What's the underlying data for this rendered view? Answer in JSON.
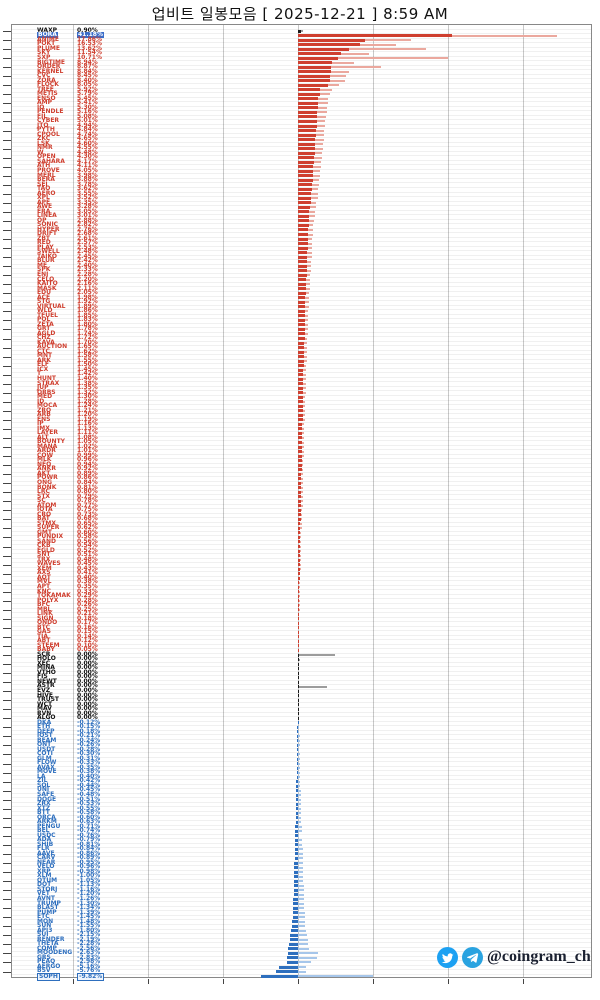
{
  "header": {
    "title": "업비트 일봉모음 [ 2025-12-21 ]  8:59 AM"
  },
  "watermark": {
    "handle": "@coingram_ch",
    "icons": [
      "twitter-icon",
      "telegram-icon"
    ]
  },
  "chart_data": {
    "type": "bar",
    "orientation": "horizontal",
    "title": "업비트 일봉모음 [ 2025-12-21 ]  8:59 AM",
    "xlabel": "",
    "ylabel": "",
    "unit": "%",
    "x_ticks": [
      -60,
      -40,
      -20,
      0,
      20,
      40,
      60
    ],
    "xlim": [
      -76,
      79
    ],
    "grid": true,
    "colors": {
      "gain": "#cf3f2f",
      "gain_light": "#eba89e",
      "flat": "#1a1a1a",
      "flat_light": "#9c9c9c",
      "loss": "#2e6fbe",
      "loss_light": "#a6c6ea",
      "selected_bg": "#3a6cc8",
      "grid": "#c9c9c9"
    },
    "row_format": "[ticker, change_pct, session_high_pct, flag(k=black,s=selected,b=boxed)]",
    "rows": [
      [
        "WAXP",
        0.9,
        1.2,
        "k"
      ],
      [
        "BORA",
        41.18,
        69.0,
        "s"
      ],
      [
        "ANIME",
        17.86,
        30.0
      ],
      [
        "POKT",
        16.53,
        26.0
      ],
      [
        "PLUME",
        13.62,
        34.0
      ],
      [
        "SKY",
        11.54,
        19.0
      ],
      [
        "SXP",
        10.71,
        40.0
      ],
      [
        "BIGTIME",
        8.94,
        15.0
      ],
      [
        "ORDER",
        8.87,
        22.0
      ],
      [
        "KERNEL",
        8.84,
        13.5
      ],
      [
        "CVC",
        8.45,
        12.8
      ],
      [
        "ZORA",
        8.4,
        12.5
      ],
      [
        "FLOCK",
        8.05,
        11.0
      ],
      [
        "TREE",
        5.92,
        9.0
      ],
      [
        "METIS",
        5.79,
        8.6
      ],
      [
        "ENSO",
        5.45,
        8.0
      ],
      [
        "AMP",
        5.41,
        8.0
      ],
      [
        "IQ",
        5.3,
        7.8
      ],
      [
        "PENDLE",
        5.16,
        7.6
      ],
      [
        "FIL",
        5.08,
        7.4
      ],
      [
        "CYBER",
        5.01,
        7.3
      ],
      [
        "JTO",
        4.94,
        7.2
      ],
      [
        "PYTH",
        4.84,
        7.0
      ],
      [
        "CPOOL",
        4.74,
        6.9
      ],
      [
        "ZKC",
        4.65,
        6.8
      ],
      [
        "LSK",
        4.6,
        6.7
      ],
      [
        "NMR",
        4.55,
        6.6
      ],
      [
        "W",
        4.48,
        6.5
      ],
      [
        "OPEN",
        4.3,
        6.3
      ],
      [
        "SAHARA",
        4.17,
        6.1
      ],
      [
        "ATH",
        4.11,
        6.0
      ],
      [
        "PROVE",
        4.05,
        5.9
      ],
      [
        "MERL",
        3.98,
        5.8
      ],
      [
        "BERA",
        3.88,
        5.7
      ],
      [
        "SEI",
        3.78,
        5.5
      ],
      [
        "TAO",
        3.62,
        5.3
      ],
      [
        "AERO",
        3.55,
        5.2
      ],
      [
        "XPL",
        3.52,
        5.2
      ],
      [
        "APE",
        3.35,
        4.9
      ],
      [
        "AWE",
        3.28,
        4.8
      ],
      [
        "ERA",
        3.05,
        4.5
      ],
      [
        "LINEA",
        3.01,
        4.4
      ],
      [
        "OP",
        2.88,
        4.2
      ],
      [
        "SONIC",
        2.82,
        4.1
      ],
      [
        "HYPER",
        2.76,
        4.0
      ],
      [
        "DRIFT",
        2.68,
        3.9
      ],
      [
        "ZBT",
        2.61,
        3.8
      ],
      [
        "RED",
        2.57,
        3.8
      ],
      [
        "PLAY",
        2.53,
        3.7
      ],
      [
        "SWELL",
        2.48,
        3.6
      ],
      [
        "TAIKO",
        2.45,
        3.6
      ],
      [
        "BLUR",
        2.42,
        3.5
      ],
      [
        "ME",
        2.4,
        3.5
      ],
      [
        "SPK",
        2.33,
        3.4
      ],
      [
        "ENJ",
        2.28,
        3.3
      ],
      [
        "CELO",
        2.2,
        3.2
      ],
      [
        "KAITO",
        2.16,
        3.2
      ],
      [
        "MASK",
        2.11,
        3.1
      ],
      [
        "EDU",
        2.05,
        3.0
      ],
      [
        "ACE",
        1.98,
        2.9
      ],
      [
        "STG",
        1.92,
        2.8
      ],
      [
        "VIRTUAL",
        1.89,
        2.8
      ],
      [
        "WLD",
        1.86,
        2.7
      ],
      [
        "TFUEL",
        1.85,
        2.7
      ],
      [
        "POL",
        1.83,
        2.7
      ],
      [
        "ZETA",
        1.8,
        2.6
      ],
      [
        "GRT",
        1.78,
        2.6
      ],
      [
        "AGLD",
        1.74,
        2.6
      ],
      [
        "CHZ",
        1.72,
        2.5
      ],
      [
        "KAVA",
        1.7,
        2.5
      ],
      [
        "AUCTION",
        1.65,
        2.4
      ],
      [
        "CTC",
        1.62,
        2.4
      ],
      [
        "MNT",
        1.58,
        2.3
      ],
      [
        "ARK",
        1.55,
        2.3
      ],
      [
        "ELF",
        1.5,
        2.2
      ],
      [
        "ICX",
        1.45,
        2.1
      ],
      [
        "T",
        1.42,
        2.1
      ],
      [
        "HUNT",
        1.4,
        2.1
      ],
      [
        "STRAX",
        1.38,
        2.0
      ],
      [
        "JUP",
        1.35,
        2.0
      ],
      [
        "ORBS",
        1.32,
        2.0
      ],
      [
        "MED",
        1.3,
        1.9
      ],
      [
        "ID",
        1.28,
        1.9
      ],
      [
        "MOCA",
        1.24,
        1.8
      ],
      [
        "ZRO",
        1.21,
        1.8
      ],
      [
        "ARB",
        1.2,
        1.8
      ],
      [
        "ENS",
        1.19,
        1.8
      ],
      [
        "IP",
        1.16,
        1.7
      ],
      [
        "IMX",
        1.13,
        1.7
      ],
      [
        "LAYER",
        1.11,
        1.6
      ],
      [
        "ALT",
        1.08,
        1.6
      ],
      [
        "BOUNTY",
        1.05,
        1.6
      ],
      [
        "MANA",
        1.02,
        1.5
      ],
      [
        "ARDR",
        1.01,
        1.5
      ],
      [
        "COW",
        0.99,
        1.5
      ],
      [
        "MLK",
        0.96,
        1.4
      ],
      [
        "NEO",
        0.94,
        1.4
      ],
      [
        "ANKR",
        0.92,
        1.4
      ],
      [
        "AKT",
        0.89,
        1.3
      ],
      [
        "POWR",
        0.86,
        1.3
      ],
      [
        "ONG",
        0.84,
        1.3
      ],
      [
        "BONK",
        0.81,
        1.2
      ],
      [
        "LRC",
        0.8,
        1.2
      ],
      [
        "STX",
        0.79,
        1.2
      ],
      [
        "SC",
        0.78,
        1.2
      ],
      [
        "ATOM",
        0.77,
        1.2
      ],
      [
        "IOTA",
        0.75,
        1.1
      ],
      [
        "CRO",
        0.73,
        1.1
      ],
      [
        "BAT",
        0.68,
        1.0
      ],
      [
        "STMX",
        0.65,
        1.0
      ],
      [
        "SUPER",
        0.62,
        1.0
      ],
      [
        "GMT",
        0.6,
        0.9
      ],
      [
        "PUNDIX",
        0.58,
        0.9
      ],
      [
        "SAND",
        0.56,
        0.9
      ],
      [
        "CKB",
        0.54,
        0.8
      ],
      [
        "EGLD",
        0.52,
        0.8
      ],
      [
        "SNT",
        0.51,
        0.8
      ],
      [
        "TRX",
        0.48,
        0.7
      ],
      [
        "WAVES",
        0.45,
        0.7
      ],
      [
        "XEM",
        0.43,
        0.7
      ],
      [
        "AXS",
        0.41,
        0.6
      ],
      [
        "AQT",
        0.4,
        0.6
      ],
      [
        "MVL",
        0.38,
        0.6
      ],
      [
        "APT",
        0.35,
        0.5
      ],
      [
        "KNC",
        0.33,
        0.5
      ],
      [
        "TOKAMAK",
        0.29,
        0.5
      ],
      [
        "POLYX",
        0.28,
        0.4
      ],
      [
        "BFC",
        0.26,
        0.4
      ],
      [
        "MBL",
        0.25,
        0.4
      ],
      [
        "LINK",
        0.21,
        0.3
      ],
      [
        "SIGN",
        0.18,
        0.3
      ],
      [
        "ONDO",
        0.17,
        0.3
      ],
      [
        "BTC",
        0.16,
        0.3
      ],
      [
        "GAS",
        0.15,
        0.2
      ],
      [
        "TIA",
        0.14,
        0.2
      ],
      [
        "ABT",
        0.12,
        0.2
      ],
      [
        "STEEM",
        0.1,
        0.2
      ],
      [
        "BABY",
        0.05,
        0.1
      ],
      [
        "SCR",
        0.0,
        9.8
      ],
      [
        "HOLO",
        0.0,
        0.4
      ],
      [
        "XEC",
        0.0,
        0.3
      ],
      [
        "MINA",
        0.0,
        0.3
      ],
      [
        "VTHO",
        0.0,
        0.2
      ],
      [
        "FIS",
        0.0,
        0.2
      ],
      [
        "NEWT",
        0.0,
        0.2
      ],
      [
        "ASTR",
        0.0,
        7.6
      ],
      [
        "EVZ",
        0.0,
        0.2
      ],
      [
        "HIVE",
        0.0,
        0.2
      ],
      [
        "TRUST",
        0.0,
        0.2
      ],
      [
        "WCT",
        0.0,
        0.3
      ],
      [
        "MAV",
        0.0,
        0.3
      ],
      [
        "RVN",
        0.0,
        0.2
      ],
      [
        "ALGO",
        0.0,
        0.2
      ],
      [
        "DKA",
        -0.12,
        0.2
      ],
      [
        "ETH",
        -0.15,
        0.3
      ],
      [
        "DEEP",
        -0.18,
        0.3
      ],
      [
        "IOST",
        -0.21,
        0.4
      ],
      [
        "BEAM",
        -0.24,
        0.4
      ],
      [
        "ONT",
        -0.26,
        0.4
      ],
      [
        "USDT",
        -0.28,
        0.1
      ],
      [
        "COTI",
        -0.3,
        0.5
      ],
      [
        "GLM",
        -0.31,
        0.5
      ],
      [
        "FLOW",
        -0.33,
        0.5
      ],
      [
        "AVAX",
        -0.35,
        0.5
      ],
      [
        "MOVE",
        -0.38,
        0.6
      ],
      [
        "LA",
        -0.4,
        0.6
      ],
      [
        "ZIL",
        -0.42,
        0.6
      ],
      [
        "SOL",
        -0.44,
        0.6
      ],
      [
        "UNI",
        -0.45,
        0.7
      ],
      [
        "SAFE",
        -0.48,
        0.7
      ],
      [
        "DOGE",
        -0.51,
        0.7
      ],
      [
        "ZRX",
        -0.53,
        0.8
      ],
      [
        "XTZ",
        -0.55,
        0.8
      ],
      [
        "BTT",
        -0.58,
        0.8
      ],
      [
        "ORCA",
        -0.6,
        0.9
      ],
      [
        "ARKM",
        -0.63,
        0.9
      ],
      [
        "PENGU",
        -0.71,
        1.0
      ],
      [
        "BEL",
        -0.74,
        1.0
      ],
      [
        "USDC",
        -0.76,
        0.1
      ],
      [
        "ADA",
        -0.79,
        1.1
      ],
      [
        "SHIB",
        -0.81,
        1.1
      ],
      [
        "FLR",
        -0.84,
        1.2
      ],
      [
        "AAVE",
        -0.86,
        1.2
      ],
      [
        "CARV",
        -0.89,
        1.2
      ],
      [
        "NEAR",
        -0.95,
        1.3
      ],
      [
        "VELO",
        -0.96,
        1.3
      ],
      [
        "XRP",
        -0.98,
        1.3
      ],
      [
        "XLM",
        -1.0,
        1.4
      ],
      [
        "QTUM",
        -1.05,
        1.4
      ],
      [
        "DOT",
        -1.13,
        1.5
      ],
      [
        "STORJ",
        -1.16,
        1.5
      ],
      [
        "VET",
        -1.2,
        1.6
      ],
      [
        "AVNT",
        -1.26,
        1.6
      ],
      [
        "TRUMP",
        -1.3,
        1.7
      ],
      [
        "BLAST",
        -1.34,
        1.7
      ],
      [
        "PUMP",
        -1.39,
        1.8
      ],
      [
        "ETC",
        -1.45,
        1.8
      ],
      [
        "MON",
        -1.48,
        1.9
      ],
      [
        "SUN",
        -1.55,
        1.9
      ],
      [
        "API3",
        -1.8,
        2.2
      ],
      [
        "SUI",
        -2.15,
        2.5
      ],
      [
        "RENDER",
        -2.19,
        2.6
      ],
      [
        "THETA",
        -2.28,
        2.7
      ],
      [
        "COMP",
        -2.56,
        3.0
      ],
      [
        "MOODENG",
        -2.63,
        5.2
      ],
      [
        "GRS",
        -2.83,
        5.0
      ],
      [
        "PEAQ",
        -2.98,
        3.4
      ],
      [
        "AERGO",
        -5.16,
        2.0
      ],
      [
        "BSV",
        -5.76,
        2.2
      ],
      [
        "SOPH",
        -9.82,
        19.9,
        "b"
      ]
    ]
  }
}
